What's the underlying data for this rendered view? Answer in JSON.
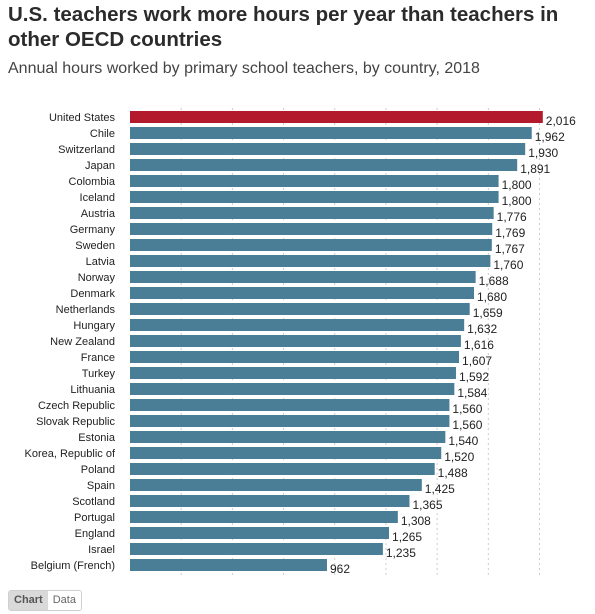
{
  "header": {
    "title": "U.S. teachers work more hours per year than teachers in other OECD countries",
    "subtitle": "Annual hours worked by primary school teachers, by country, 2018"
  },
  "tabs": {
    "chart_label": "Chart",
    "data_label": "Data"
  },
  "colors": {
    "highlight": "#b31b2c",
    "bar": "#4a7d96",
    "grid": "#cccccc"
  },
  "chart_data": {
    "type": "bar",
    "orientation": "horizontal",
    "title": "",
    "xlabel": "",
    "ylabel": "",
    "xlim": [
      0,
      2100
    ],
    "grid": true,
    "highlight_category": "United States",
    "categories": [
      "United States",
      "Chile",
      "Switzerland",
      "Japan",
      "Colombia",
      "Iceland",
      "Austria",
      "Germany",
      "Sweden",
      "Latvia",
      "Norway",
      "Denmark",
      "Netherlands",
      "Hungary",
      "New Zealand",
      "France",
      "Turkey",
      "Lithuania",
      "Czech Republic",
      "Slovak Republic",
      "Estonia",
      "Korea, Republic of",
      "Poland",
      "Spain",
      "Scotland",
      "Portugal",
      "England",
      "Israel",
      "Belgium (French)"
    ],
    "values": [
      2016,
      1962,
      1930,
      1891,
      1800,
      1800,
      1776,
      1769,
      1767,
      1760,
      1688,
      1680,
      1659,
      1632,
      1616,
      1607,
      1592,
      1584,
      1560,
      1560,
      1540,
      1520,
      1488,
      1425,
      1365,
      1308,
      1265,
      1235,
      962
    ],
    "value_labels": [
      "2,016",
      "1,962",
      "1,930",
      "1,891",
      "1,800",
      "1,800",
      "1,776",
      "1,769",
      "1,767",
      "1,760",
      "1,688",
      "1,680",
      "1,659",
      "1,632",
      "1,616",
      "1,607",
      "1,592",
      "1,584",
      "1,560",
      "1,560",
      "1,540",
      "1,520",
      "1,488",
      "1,425",
      "1,365",
      "1,308",
      "1,265",
      "1,235",
      "962"
    ]
  }
}
